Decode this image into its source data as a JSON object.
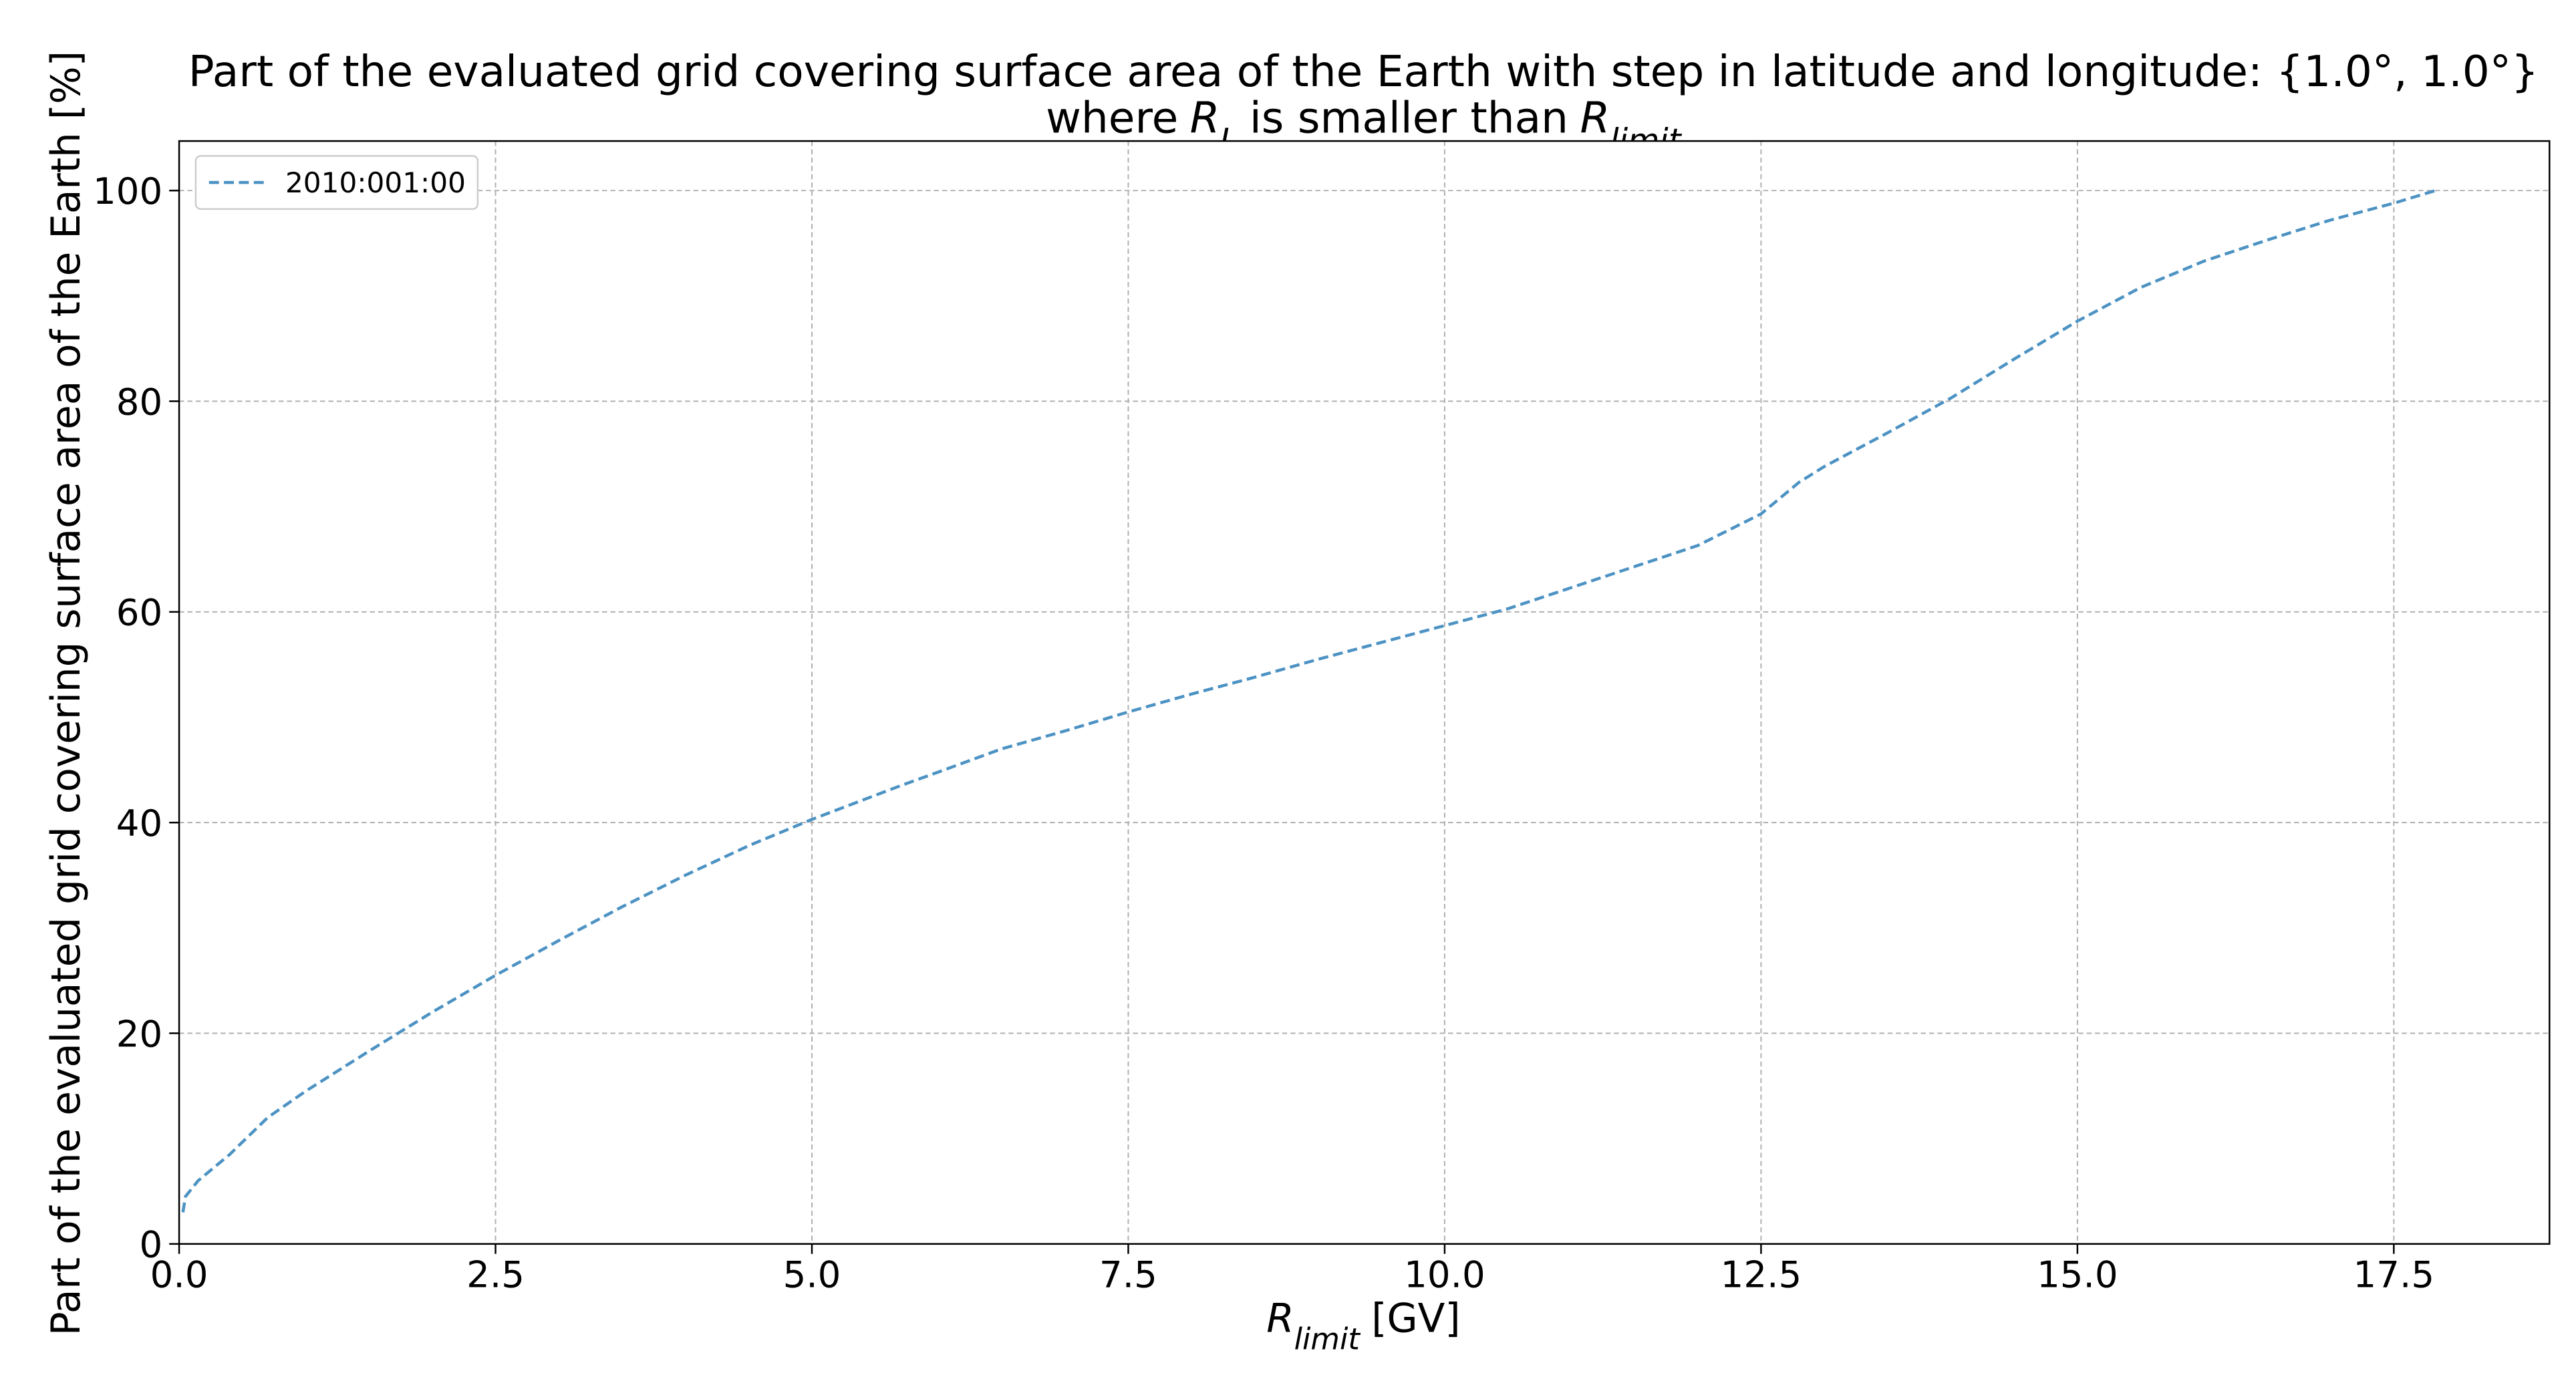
{
  "chart_data": {
    "type": "line",
    "title": "Part of the evaluated grid covering surface area of the Earth with step in latitude and longitude: {1.0°, 1.0°}",
    "title_parts": [
      "where",
      "R",
      "L",
      "is smaller than",
      "R",
      "limit"
    ],
    "xlabel_parts": [
      "R",
      "limit",
      "[GV]"
    ],
    "ylabel": "Part of the evaluated grid covering surface area of the Earth  [%]",
    "x": [
      0.03,
      0.05,
      0.15,
      0.4,
      0.7,
      1.0,
      1.5,
      2.0,
      2.5,
      3.0,
      3.5,
      4.0,
      4.5,
      5.0,
      5.7,
      6.0,
      6.5,
      7.0,
      7.5,
      8.0,
      8.5,
      9.0,
      9.5,
      10.0,
      10.5,
      11.0,
      11.5,
      12.0,
      12.5,
      12.8,
      13.0,
      13.5,
      14.0,
      14.5,
      15.0,
      15.5,
      16.0,
      16.5,
      17.0,
      17.5,
      17.83
    ],
    "series": [
      {
        "name": "2010:001:00",
        "color": "#4c92c3",
        "values": [
          3,
          4.5,
          6,
          8.5,
          12,
          14.5,
          18.3,
          22,
          25.5,
          28.8,
          32,
          35,
          37.8,
          40.3,
          43.5,
          44.8,
          47,
          48.7,
          50.5,
          52.2,
          53.8,
          55.5,
          57.1,
          58.7,
          60.3,
          62.3,
          64.3,
          66.3,
          69.3,
          72.3,
          73.8,
          77,
          80.3,
          84,
          87.6,
          90.8,
          93.3,
          95.3,
          97.2,
          98.8,
          100
        ]
      }
    ],
    "xlim": [
      0,
      18.73
    ],
    "ylim": [
      0,
      104.7
    ],
    "xticks": [
      {
        "value": 0,
        "label": "0.0"
      },
      2.5,
      {
        "value": 5,
        "label": "5.0"
      },
      7.5,
      {
        "value": 10,
        "label": "10.0"
      },
      12.5,
      {
        "value": 15,
        "label": "15.0"
      },
      17.5
    ],
    "yticks": [
      0,
      20,
      40,
      60,
      80,
      100
    ],
    "grid": true,
    "legend": "upper left"
  }
}
